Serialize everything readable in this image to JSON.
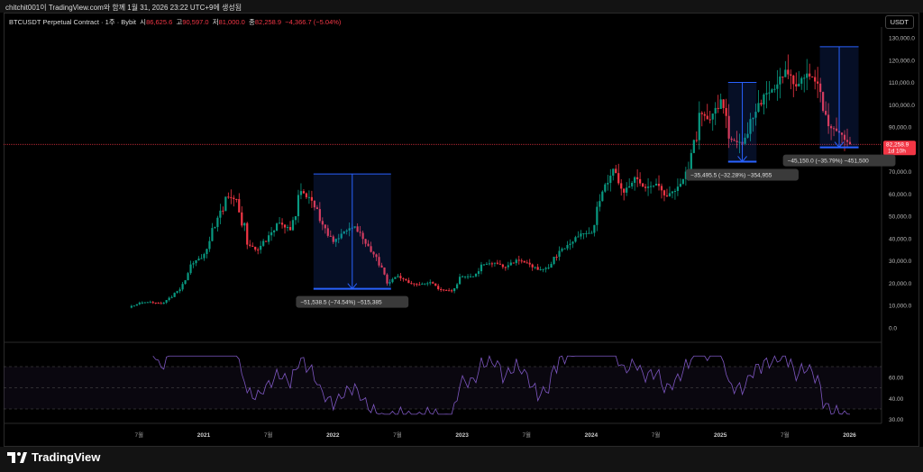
{
  "caption": "chitchit001이 TradingView.com와 함께 1월 31, 2026 23:22 UTC+9에 생성됨",
  "symbol": {
    "title": "BTCUSDT Perpetual Contract · 1주 · Bybit",
    "o_label": "시",
    "o": "86,625.6",
    "h_label": "고",
    "h": "90,597.0",
    "l_label": "저",
    "l": "81,000.0",
    "c_label": "종",
    "c": "82,258.9",
    "change": "−4,366.7 (−5.04%)"
  },
  "currency": "USDT",
  "price_axis": [
    "130,000.0",
    "120,000.0",
    "110,000.0",
    "100,000.0",
    "90,000.0",
    "70,000.0",
    "60,000.0",
    "50,000.0",
    "40,000.0",
    "30,000.0",
    "20,000.0",
    "10,000.0",
    "0.0"
  ],
  "last_price": {
    "value": "82,258.9",
    "countdown": "1d 10h"
  },
  "rsi_axis": [
    "60.00",
    "40.00",
    "30.00"
  ],
  "time_axis": [
    "7월",
    "2021",
    "7월",
    "2022",
    "7월",
    "2023",
    "7월",
    "2024",
    "7월",
    "2025",
    "7월",
    "2026"
  ],
  "measures": [
    {
      "label": "−51,538.5 (−74.54%) −515,385",
      "from": 69000,
      "to": 17500,
      "t0": 2021.85,
      "t1": 2022.45
    },
    {
      "label": "−35,495.5 (−32.28%) −354,955",
      "from": 110000,
      "to": 74500,
      "t0": 2025.06,
      "t1": 2025.28
    },
    {
      "label": "−45,150.0 (−35.79%) −451,500",
      "from": 126000,
      "to": 80900,
      "t0": 2025.77,
      "t1": 2026.07
    }
  ],
  "colors": {
    "up": "#089981",
    "down": "#f23645",
    "rsi": "#7e57c2",
    "measure": "#2962ff"
  },
  "chart_data": {
    "type": "candlestick",
    "interval": "monthly approx",
    "start": 2020.42,
    "closes": [
      9100,
      11300,
      11600,
      10800,
      13800,
      19700,
      29000,
      33100,
      45200,
      58800,
      57700,
      37300,
      35000,
      41500,
      47100,
      43800,
      61300,
      57000,
      46300,
      38500,
      43200,
      45500,
      37700,
      31800,
      19900,
      23300,
      20100,
      19400,
      20500,
      17200,
      16500,
      23100,
      23100,
      28500,
      29200,
      27200,
      30500,
      29200,
      26000,
      27000,
      34500,
      37700,
      42300,
      42600,
      61100,
      71300,
      60600,
      67500,
      62700,
      64600,
      59000,
      63300,
      70300,
      96400,
      93400,
      102400,
      84300,
      82500,
      94200,
      104600,
      107100,
      115700,
      108200,
      114000,
      109500,
      90400,
      87500,
      82258.9
    ],
    "ylim": [
      0,
      130000
    ]
  },
  "brand": "TradingView"
}
